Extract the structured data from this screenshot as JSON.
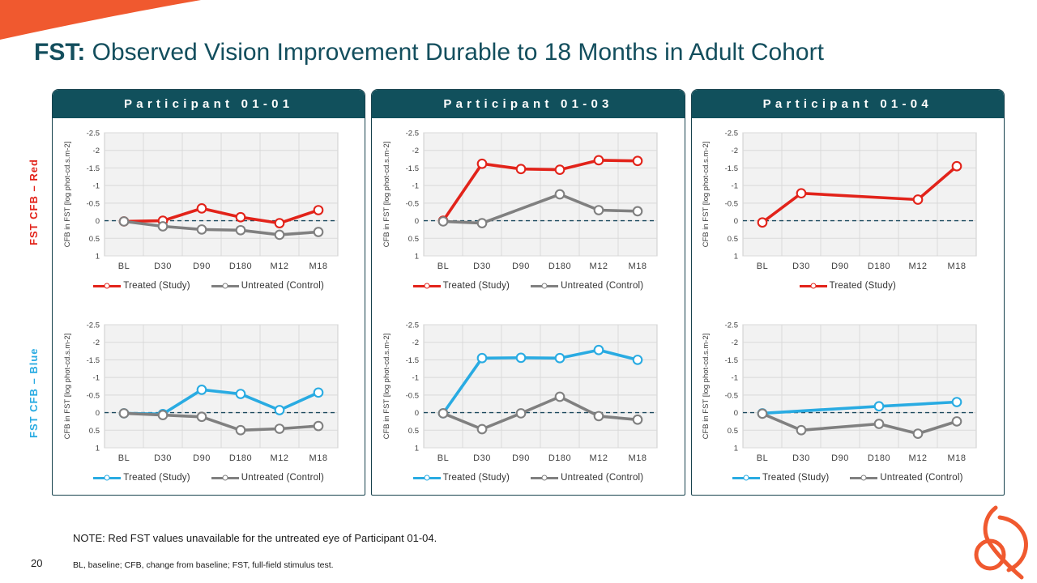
{
  "slide": {
    "title_prefix": "FST:",
    "title_rest": " Observed Vision Improvement Durable to 18 Months in Adult Cohort",
    "note": "NOTE: Red FST values unavailable for the untreated eye of Participant 01-04.",
    "footnote": "BL, baseline; CFB, change from baseline; FST, full-field stimulus test.",
    "page_number": "20"
  },
  "row_labels": {
    "red": "FST CFB – Red",
    "blue": "FST CFB – Blue"
  },
  "panels": [
    {
      "header": "Participant 01-01"
    },
    {
      "header": "Participant 01-03"
    },
    {
      "header": "Participant 01-04"
    }
  ],
  "colors": {
    "accent_orange": "#f0592f",
    "title_teal": "#134e5d",
    "header_teal": "#11505c",
    "treated_red": "#e2231a",
    "treated_blue": "#29abe2",
    "untreated_gray": "#808080",
    "plot_bg": "#f2f2f2",
    "gridline": "#d9d9d9",
    "zero_line": "#1c4a5e"
  },
  "chart_data": [
    {
      "type": "line",
      "participant": "01-01",
      "row": "red",
      "categories": [
        "BL",
        "D30",
        "D90",
        "D180",
        "M12",
        "M18"
      ],
      "ylabel": "CFB in FST [log phot-cd.s.m-2]",
      "ylim": [
        -2.5,
        1
      ],
      "y_reversed": true,
      "yticks": [
        -2.5,
        -2,
        -1.5,
        -1,
        -0.5,
        0,
        0.5,
        1
      ],
      "grid": true,
      "legend_position": "bottom",
      "series": [
        {
          "name": "Treated (Study)",
          "color": "#e2231a",
          "values": [
            0.02,
            0.0,
            -0.35,
            -0.1,
            0.07,
            -0.3
          ]
        },
        {
          "name": "Untreated (Control)",
          "color": "#808080",
          "values": [
            0.02,
            0.16,
            0.25,
            0.27,
            0.4,
            0.32
          ]
        }
      ]
    },
    {
      "type": "line",
      "participant": "01-01",
      "row": "blue",
      "categories": [
        "BL",
        "D30",
        "D90",
        "D180",
        "M12",
        "M18"
      ],
      "ylabel": "CFB in FST [log phot-cd.s.m-2]",
      "ylim": [
        -2.5,
        1
      ],
      "y_reversed": true,
      "yticks": [
        -2.5,
        -2,
        -1.5,
        -1,
        -0.5,
        0,
        0.5,
        1
      ],
      "grid": true,
      "legend_position": "bottom",
      "series": [
        {
          "name": "Treated (Study)",
          "color": "#29abe2",
          "values": [
            0.02,
            0.04,
            -0.65,
            -0.53,
            -0.07,
            -0.57
          ]
        },
        {
          "name": "Untreated (Control)",
          "color": "#808080",
          "values": [
            0.02,
            0.07,
            0.12,
            0.5,
            0.46,
            0.38
          ]
        }
      ]
    },
    {
      "type": "line",
      "participant": "01-03",
      "row": "red",
      "categories": [
        "BL",
        "D30",
        "D90",
        "D180",
        "M12",
        "M18"
      ],
      "ylabel": "CFB in FST [log phot-cd.s.m-2]",
      "ylim": [
        -2.5,
        1
      ],
      "y_reversed": true,
      "yticks": [
        -2.5,
        -2,
        -1.5,
        -1,
        -0.5,
        0,
        0.5,
        1
      ],
      "grid": true,
      "legend_position": "bottom",
      "series": [
        {
          "name": "Treated (Study)",
          "color": "#e2231a",
          "values": [
            0.0,
            -1.62,
            -1.47,
            -1.45,
            -1.72,
            -1.7
          ]
        },
        {
          "name": "Untreated (Control)",
          "color": "#808080",
          "values": [
            0.02,
            0.07,
            null,
            -0.75,
            -0.3,
            -0.27
          ]
        }
      ]
    },
    {
      "type": "line",
      "participant": "01-03",
      "row": "blue",
      "categories": [
        "BL",
        "D30",
        "D90",
        "D180",
        "M12",
        "M18"
      ],
      "ylabel": "CFB in FST [log phot-cd.s.m-2]",
      "ylim": [
        -2.5,
        1
      ],
      "y_reversed": true,
      "yticks": [
        -2.5,
        -2,
        -1.5,
        -1,
        -0.5,
        0,
        0.5,
        1
      ],
      "grid": true,
      "legend_position": "bottom",
      "series": [
        {
          "name": "Treated (Study)",
          "color": "#29abe2",
          "values": [
            0.02,
            -1.55,
            -1.56,
            -1.55,
            -1.78,
            -1.5
          ]
        },
        {
          "name": "Untreated (Control)",
          "color": "#808080",
          "values": [
            0.02,
            0.47,
            0.02,
            -0.45,
            0.1,
            0.2
          ]
        }
      ]
    },
    {
      "type": "line",
      "participant": "01-04",
      "row": "red",
      "categories": [
        "BL",
        "D30",
        "D90",
        "D180",
        "M12",
        "M18"
      ],
      "ylabel": "CFB in FST [log phot-cd.s.m-2]",
      "ylim": [
        -2.5,
        1
      ],
      "y_reversed": true,
      "yticks": [
        -2.5,
        -2,
        -1.5,
        -1,
        -0.5,
        0,
        0.5,
        1
      ],
      "grid": true,
      "legend_position": "bottom",
      "series": [
        {
          "name": "Treated (Study)",
          "color": "#e2231a",
          "values": [
            0.05,
            -0.78,
            null,
            null,
            -0.6,
            -1.55
          ]
        }
      ]
    },
    {
      "type": "line",
      "participant": "01-04",
      "row": "blue",
      "categories": [
        "BL",
        "D30",
        "D90",
        "D180",
        "M12",
        "M18"
      ],
      "ylabel": "CFB in FST [log phot-cd.s.m-2]",
      "ylim": [
        -2.5,
        1
      ],
      "y_reversed": true,
      "yticks": [
        -2.5,
        -2,
        -1.5,
        -1,
        -0.5,
        0,
        0.5,
        1
      ],
      "grid": true,
      "legend_position": "bottom",
      "series": [
        {
          "name": "Treated (Study)",
          "color": "#29abe2",
          "values": [
            0.02,
            null,
            null,
            -0.18,
            null,
            -0.3
          ]
        },
        {
          "name": "Untreated (Control)",
          "color": "#808080",
          "values": [
            0.03,
            0.5,
            null,
            0.32,
            0.6,
            0.25
          ]
        }
      ]
    }
  ]
}
